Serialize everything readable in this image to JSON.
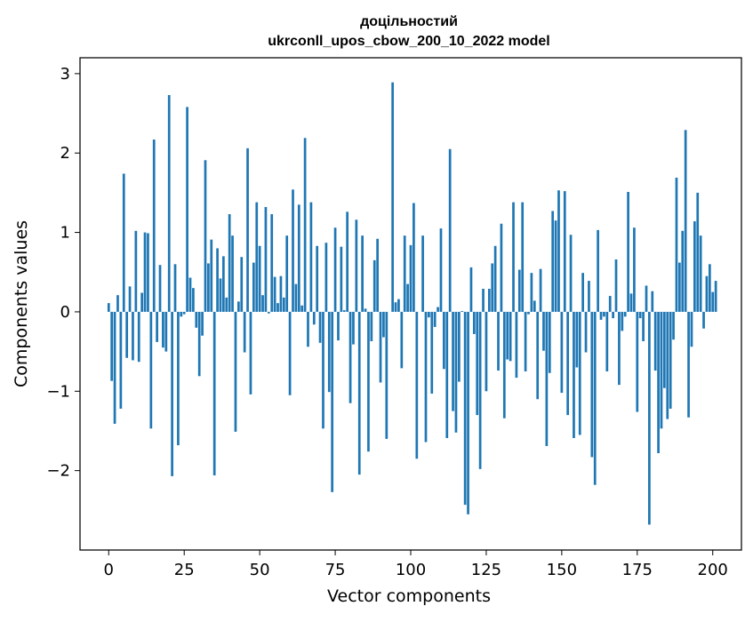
{
  "chart_data": {
    "type": "bar",
    "title": "доцільностий",
    "subtitle": "ukrconll_upos_cbow_200_10_2022 model",
    "xlabel": "Vector components",
    "ylabel": "Components values",
    "xlim": [
      -9.5,
      209.5
    ],
    "ylim": [
      -3.0,
      3.2
    ],
    "xticks": [
      0,
      25,
      50,
      75,
      100,
      125,
      150,
      175,
      200
    ],
    "xtick_labels": [
      "0",
      "25",
      "50",
      "75",
      "100",
      "125",
      "150",
      "175",
      "200"
    ],
    "yticks": [
      -2,
      -1,
      0,
      1,
      2,
      3
    ],
    "ytick_labels": [
      "−2",
      "−1",
      "0",
      "1",
      "2",
      "3"
    ],
    "bar_color": "#1f77b4",
    "grid": false,
    "values": [
      0.11,
      -0.87,
      -1.41,
      0.21,
      -1.22,
      1.74,
      -0.58,
      0.32,
      -0.61,
      1.02,
      -0.63,
      0.24,
      1.0,
      0.99,
      -1.47,
      2.17,
      -0.38,
      0.59,
      -0.45,
      -0.5,
      2.73,
      -2.07,
      0.6,
      -1.68,
      -0.06,
      -0.03,
      2.58,
      0.43,
      0.3,
      -0.2,
      -0.81,
      -0.3,
      1.91,
      0.61,
      0.91,
      -2.06,
      0.8,
      0.42,
      0.7,
      0.18,
      1.23,
      0.96,
      -1.51,
      0.13,
      0.69,
      -0.51,
      2.06,
      -1.04,
      0.62,
      1.38,
      0.83,
      0.21,
      1.32,
      -0.02,
      1.23,
      0.44,
      0.11,
      0.45,
      0.18,
      0.96,
      -1.05,
      1.54,
      0.35,
      1.35,
      0.08,
      2.19,
      -0.44,
      1.38,
      -0.16,
      0.83,
      -0.39,
      -1.47,
      0.87,
      -1.01,
      -2.27,
      1.06,
      -0.36,
      0.82,
      0.02,
      1.26,
      -1.15,
      -0.41,
      1.16,
      -2.05,
      0.96,
      0.04,
      -1.76,
      -0.37,
      0.65,
      0.92,
      -0.89,
      -0.32,
      -1.6,
      0.0,
      2.89,
      0.12,
      0.16,
      -0.71,
      0.96,
      0.35,
      0.84,
      1.37,
      -1.85,
      0.0,
      0.96,
      -1.64,
      -0.07,
      -1.03,
      -0.19,
      0.06,
      1.05,
      -0.72,
      -1.59,
      2.05,
      -1.25,
      -1.52,
      -0.88,
      0.01,
      -2.43,
      -2.55,
      0.56,
      -0.28,
      -1.3,
      -1.98,
      0.29,
      -1.0,
      0.29,
      0.61,
      0.83,
      -0.74,
      1.11,
      -1.34,
      -0.6,
      -0.62,
      1.38,
      -0.83,
      0.53,
      1.38,
      -0.75,
      -0.03,
      0.49,
      0.14,
      -1.1,
      0.54,
      -0.49,
      -1.69,
      -0.77,
      1.27,
      1.15,
      1.53,
      -1.02,
      1.52,
      -1.3,
      0.97,
      -1.59,
      -0.7,
      -1.55,
      0.49,
      -0.51,
      0.39,
      -1.83,
      -2.18,
      1.03,
      -0.1,
      -0.06,
      -0.75,
      0.2,
      -0.08,
      0.66,
      -0.92,
      -0.24,
      -0.06,
      1.51,
      0.23,
      1.06,
      -1.26,
      -0.08,
      -0.37,
      0.33,
      -2.68,
      0.26,
      -0.74,
      -1.78,
      -1.47,
      -0.96,
      -1.35,
      -1.22,
      -0.35,
      1.69,
      0.62,
      1.02,
      2.29,
      -1.33,
      -0.44,
      1.14,
      1.5,
      0.96,
      -0.21,
      0.45,
      0.6,
      0.25,
      0.39
    ]
  }
}
